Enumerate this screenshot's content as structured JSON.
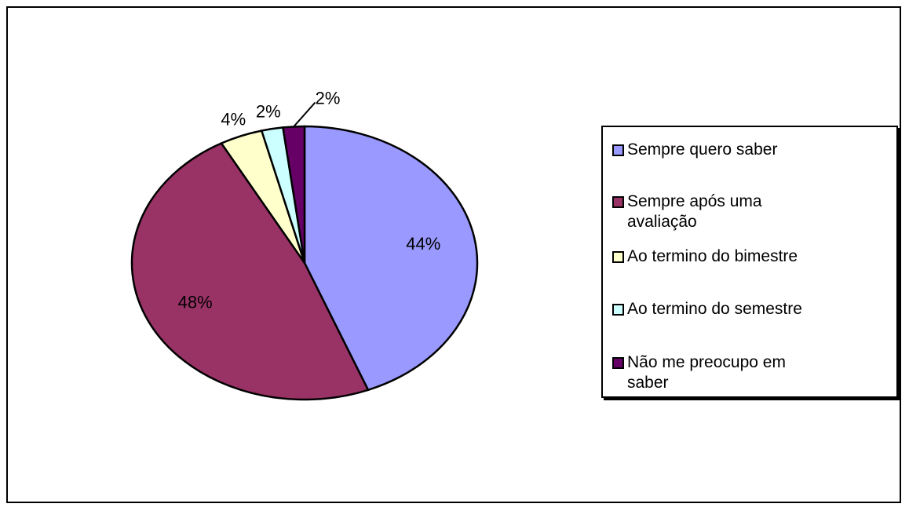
{
  "chart_data": {
    "type": "pie",
    "categories": [
      "Sempre quero saber",
      "Sempre após uma avaliação",
      "Ao termino do bimestre",
      "Ao termino do semestre",
      "Não me preocupo em saber"
    ],
    "values": [
      44,
      48,
      4,
      2,
      2
    ],
    "value_labels": [
      "44%",
      "48%",
      "4%",
      "2%",
      "2%"
    ],
    "colors": [
      "#9999ff",
      "#993366",
      "#ffffcc",
      "#ccffff",
      "#660066"
    ],
    "legend": "right"
  }
}
